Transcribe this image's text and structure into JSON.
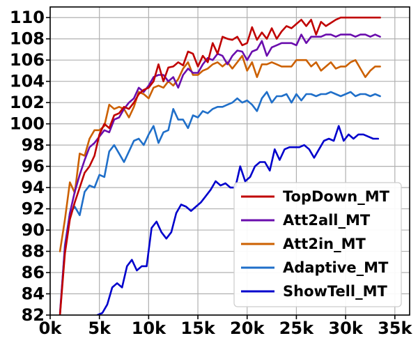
{
  "chart_data": {
    "type": "line",
    "title": "",
    "xlabel": "",
    "ylabel": "",
    "xlim": [
      0,
      36500
    ],
    "ylim": [
      82,
      111
    ],
    "xticks": [
      0,
      5000,
      10000,
      15000,
      20000,
      25000,
      30000,
      35000
    ],
    "xtick_labels": [
      "0k",
      "5k",
      "10k",
      "15k",
      "20k",
      "25k",
      "30k",
      "35k"
    ],
    "yticks": [
      82,
      84,
      86,
      88,
      90,
      92,
      94,
      96,
      98,
      100,
      102,
      104,
      106,
      108,
      110
    ],
    "ytick_labels": [
      "82",
      "84",
      "86",
      "88",
      "90",
      "92",
      "94",
      "96",
      "98",
      "100",
      "102",
      "104",
      "106",
      "108",
      "110"
    ],
    "grid": true,
    "legend_position": "lower-right",
    "series": [
      {
        "name": "TopDown_MT",
        "color": "#c00000",
        "x": [
          1000,
          1500,
          2000,
          2500,
          3000,
          3500,
          4000,
          4500,
          5000,
          5500,
          6000,
          6500,
          7000,
          7500,
          8000,
          8500,
          9000,
          9500,
          10000,
          10500,
          11000,
          11500,
          12000,
          12500,
          13000,
          13500,
          14000,
          14500,
          15000,
          15500,
          16000,
          16500,
          17000,
          17500,
          18000,
          18500,
          19000,
          19500,
          20000,
          20500,
          21000,
          21500,
          22000,
          22500,
          23000,
          23500,
          24000,
          24500,
          25000,
          25500,
          26000,
          26500,
          27000,
          27500,
          28000,
          28500,
          29000,
          29500,
          30000,
          30500,
          31000,
          31500,
          32000,
          32500,
          33000,
          33500
        ],
        "y": [
          82.0,
          87.8,
          91.0,
          92.6,
          94.0,
          95.4,
          96.0,
          97.0,
          99.0,
          100.0,
          99.6,
          100.8,
          101.0,
          101.6,
          101.4,
          102.0,
          102.8,
          103.2,
          103.4,
          104.0,
          105.6,
          104.0,
          105.3,
          105.4,
          105.8,
          105.5,
          106.8,
          106.6,
          105.4,
          106.4,
          105.8,
          107.6,
          106.6,
          108.2,
          108.0,
          107.9,
          108.2,
          107.4,
          107.6,
          109.1,
          107.9,
          108.6,
          108.0,
          109.0,
          108.0,
          108.7,
          109.2,
          109.0,
          109.4,
          109.8,
          109.2,
          109.8,
          108.4,
          109.6,
          109.2,
          109.5,
          109.8,
          110.0,
          110.0,
          110.0,
          110.0,
          110.0,
          110.0,
          110.0,
          110.0,
          110.0
        ]
      },
      {
        "name": "Att2all_MT",
        "color": "#6a0dad",
        "x": [
          1000,
          1500,
          2000,
          2500,
          3000,
          3500,
          4000,
          4500,
          5000,
          5500,
          6000,
          6500,
          7000,
          7500,
          8000,
          8500,
          9000,
          9500,
          10000,
          10500,
          11000,
          11500,
          12000,
          12500,
          13000,
          13500,
          14000,
          14500,
          15000,
          15500,
          16000,
          16500,
          17000,
          17500,
          18000,
          18500,
          19000,
          19500,
          20000,
          20500,
          21000,
          21500,
          22000,
          22500,
          23000,
          23500,
          24000,
          24500,
          25000,
          25500,
          26000,
          26500,
          27000,
          27500,
          28000,
          28500,
          29000,
          29500,
          30000,
          30500,
          31000,
          31500,
          32000,
          32500,
          33000,
          33500
        ],
        "y": [
          82.2,
          88.4,
          91.6,
          93.6,
          95.2,
          96.6,
          97.8,
          98.2,
          98.8,
          99.4,
          99.2,
          100.4,
          100.6,
          101.4,
          102.0,
          102.4,
          103.4,
          103.0,
          103.6,
          104.4,
          104.6,
          104.6,
          104.0,
          104.4,
          103.4,
          104.6,
          105.2,
          104.8,
          104.8,
          105.6,
          106.2,
          106.0,
          106.6,
          106.4,
          105.6,
          106.4,
          106.9,
          106.8,
          106.0,
          106.8,
          107.0,
          107.8,
          106.4,
          107.2,
          107.4,
          107.6,
          107.6,
          107.6,
          107.4,
          108.4,
          107.6,
          108.2,
          108.2,
          108.2,
          108.4,
          108.4,
          108.2,
          108.4,
          108.4,
          108.4,
          108.2,
          108.4,
          108.4,
          108.2,
          108.4,
          108.2
        ]
      },
      {
        "name": "Att2in_MT",
        "color": "#cc6000",
        "x": [
          1000,
          1500,
          2000,
          2500,
          3000,
          3500,
          4000,
          4500,
          5000,
          5500,
          6000,
          6500,
          7000,
          7500,
          8000,
          8500,
          9000,
          9500,
          10000,
          10500,
          11000,
          11500,
          12000,
          12500,
          13000,
          13500,
          14000,
          14500,
          15000,
          15500,
          16000,
          16500,
          17000,
          17500,
          18000,
          18500,
          19000,
          19500,
          20000,
          20500,
          21000,
          21500,
          22000,
          22500,
          23000,
          23500,
          24000,
          24500,
          25000,
          25500,
          26000,
          26500,
          27000,
          27500,
          28000,
          28500,
          29000,
          29500,
          30000,
          30500,
          31000,
          31500,
          32000,
          32500,
          33000,
          33500
        ],
        "y": [
          88.0,
          91.0,
          94.5,
          93.5,
          97.2,
          97.0,
          98.6,
          99.4,
          99.4,
          99.8,
          101.8,
          101.4,
          101.6,
          101.4,
          100.6,
          101.6,
          103.0,
          102.8,
          102.4,
          103.4,
          103.6,
          103.4,
          104.0,
          103.6,
          104.2,
          105.2,
          105.8,
          104.6,
          104.6,
          105.0,
          105.2,
          105.6,
          105.8,
          105.4,
          105.8,
          105.2,
          105.8,
          106.4,
          105.0,
          105.8,
          104.4,
          105.6,
          105.6,
          105.8,
          105.6,
          105.4,
          105.4,
          105.4,
          106.0,
          106.0,
          106.0,
          105.4,
          105.8,
          105.0,
          105.4,
          105.8,
          105.2,
          105.4,
          105.4,
          105.8,
          106.0,
          105.2,
          104.4,
          105.0,
          105.4,
          105.4
        ]
      },
      {
        "name": "Adaptive_MT",
        "color": "#1f6fc9",
        "x": [
          1000,
          1500,
          2000,
          2500,
          3000,
          3500,
          4000,
          4500,
          5000,
          5500,
          6000,
          6500,
          7000,
          7500,
          8000,
          8500,
          9000,
          9500,
          10000,
          10500,
          11000,
          11500,
          12000,
          12500,
          13000,
          13500,
          14000,
          14500,
          15000,
          15500,
          16000,
          16500,
          17000,
          17500,
          18000,
          18500,
          19000,
          19500,
          20000,
          20500,
          21000,
          21500,
          22000,
          22500,
          23000,
          23500,
          24000,
          24500,
          25000,
          25500,
          26000,
          26500,
          27000,
          27500,
          28000,
          28500,
          29000,
          29500,
          30000,
          30500,
          31000,
          31500,
          32000,
          32500,
          33000,
          33500
        ],
        "y": [
          82.0,
          88.6,
          91.6,
          92.2,
          91.4,
          93.6,
          94.2,
          94.0,
          95.2,
          95.0,
          97.4,
          98.0,
          97.2,
          96.4,
          97.4,
          98.4,
          98.6,
          98.0,
          99.0,
          99.8,
          98.2,
          99.2,
          99.4,
          101.4,
          100.4,
          100.4,
          99.6,
          100.8,
          100.6,
          101.2,
          101.0,
          101.4,
          101.6,
          101.6,
          101.8,
          102.0,
          102.4,
          102.0,
          102.2,
          101.8,
          101.2,
          102.4,
          103.0,
          102.0,
          102.6,
          102.6,
          102.8,
          102.0,
          102.8,
          102.2,
          102.8,
          102.8,
          102.6,
          102.8,
          102.8,
          103.0,
          102.8,
          102.6,
          102.8,
          103.0,
          102.6,
          102.8,
          102.8,
          102.6,
          102.8,
          102.6
        ]
      },
      {
        "name": "ShowTell_MT",
        "color": "#0000cc",
        "x": [
          4800,
          5300,
          5800,
          6300,
          6800,
          7300,
          7800,
          8300,
          8800,
          9300,
          9800,
          10300,
          10800,
          11300,
          11800,
          12300,
          12800,
          13300,
          13800,
          14300,
          14800,
          15300,
          15800,
          16300,
          16800,
          17300,
          17800,
          18300,
          18800,
          19300,
          19800,
          20300,
          20800,
          21300,
          21800,
          22300,
          22800,
          23300,
          23800,
          24300,
          24800,
          25300,
          25800,
          26300,
          26800,
          27300,
          27800,
          28300,
          28800,
          29300,
          29800,
          30300,
          30800,
          31300,
          31800,
          32300,
          32800,
          33300
        ],
        "y": [
          82.0,
          82.2,
          83.0,
          84.6,
          85.0,
          84.6,
          86.6,
          87.2,
          86.2,
          86.6,
          86.6,
          90.2,
          90.8,
          89.8,
          89.2,
          89.8,
          91.6,
          92.4,
          92.2,
          91.8,
          92.2,
          92.6,
          93.2,
          93.8,
          94.6,
          94.2,
          94.4,
          94.0,
          94.0,
          96.0,
          94.6,
          95.0,
          96.0,
          96.4,
          96.4,
          95.6,
          97.6,
          96.6,
          97.6,
          97.8,
          97.8,
          97.8,
          98.0,
          97.6,
          96.8,
          97.6,
          98.4,
          98.6,
          98.4,
          99.8,
          98.4,
          99.0,
          98.6,
          99.0,
          99.0,
          98.8,
          98.6,
          98.6
        ]
      }
    ]
  }
}
